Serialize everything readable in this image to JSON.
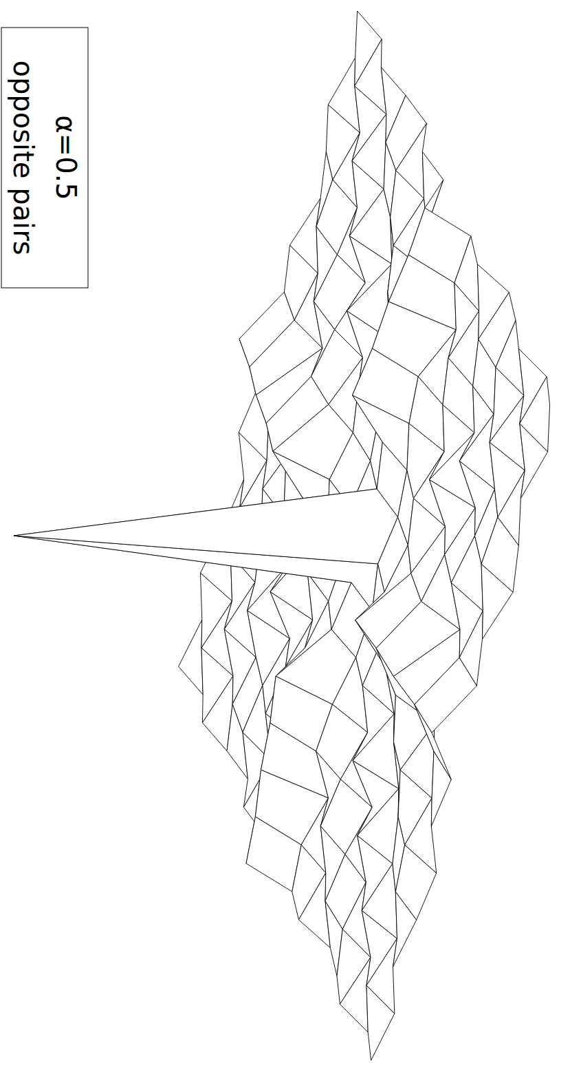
{
  "chart_data": {
    "type": "surface",
    "title": "opposite pairs",
    "subtitle": "α=0.5",
    "z": [
      [
        0.2,
        -0.1,
        0.3,
        0,
        -0.2,
        0.3,
        0.1,
        1.0,
        0.1,
        0.3,
        -0.2,
        0,
        0.3,
        -0.1,
        0.2
      ],
      [
        -0.1,
        0.3,
        -0.2,
        0.2,
        0.3,
        -0.1,
        0.2,
        1.1,
        0.2,
        -0.1,
        0.3,
        0.2,
        -0.2,
        0.3,
        -0.1
      ],
      [
        0.3,
        -0.2,
        0.4,
        -0.1,
        0.1,
        0.4,
        -0.2,
        1.3,
        -0.2,
        0.4,
        0.1,
        -0.1,
        0.4,
        -0.2,
        0.3
      ],
      [
        0,
        0.2,
        -0.1,
        0.5,
        -0.3,
        0.2,
        0.5,
        1.4,
        0.5,
        0.2,
        -0.3,
        0.5,
        -0.1,
        0.2,
        0
      ],
      [
        -0.2,
        0.3,
        0.1,
        -0.3,
        0.6,
        -0.2,
        0.4,
        1.6,
        0.4,
        -0.2,
        0.6,
        -0.3,
        0.1,
        0.3,
        -0.2
      ],
      [
        0.3,
        -0.1,
        0.4,
        0.2,
        -0.2,
        0.3,
        0.1,
        0.4,
        0.1,
        0.3,
        -0.2,
        0.2,
        0.4,
        -0.1,
        0.3
      ],
      [
        0.1,
        0.2,
        -0.2,
        0.5,
        0.4,
        0.1,
        0,
        0.2,
        0,
        0.1,
        0.4,
        0.5,
        -0.2,
        0.2,
        0.1
      ],
      [
        1.0,
        1.1,
        1.3,
        1.4,
        1.6,
        0.4,
        0.2,
        10,
        0.2,
        0.4,
        1.6,
        1.4,
        1.3,
        1.1,
        1.0
      ],
      [
        0.1,
        0.2,
        -0.2,
        0.5,
        0.4,
        0.1,
        0,
        0.2,
        0,
        0.1,
        0.4,
        0.5,
        -0.2,
        0.2,
        0.1
      ],
      [
        0.3,
        -0.1,
        0.4,
        0.2,
        -0.2,
        0.3,
        0.1,
        0.4,
        0.1,
        0.3,
        -0.2,
        0.2,
        0.4,
        -0.1,
        0.3
      ],
      [
        -0.2,
        0.3,
        0.1,
        -0.3,
        0.6,
        -0.2,
        0.4,
        1.6,
        0.4,
        -0.2,
        0.6,
        -0.3,
        0.1,
        0.3,
        -0.2
      ],
      [
        0,
        0.2,
        -0.1,
        0.5,
        -0.3,
        0.2,
        0.5,
        1.4,
        0.5,
        0.2,
        -0.3,
        0.5,
        -0.1,
        0.2,
        0
      ],
      [
        0.3,
        -0.2,
        0.4,
        -0.1,
        0.1,
        0.4,
        -0.2,
        1.3,
        -0.2,
        0.4,
        0.1,
        -0.1,
        0.4,
        -0.2,
        0.3
      ],
      [
        -0.1,
        0.3,
        -0.2,
        0.2,
        0.3,
        -0.1,
        0.2,
        1.1,
        0.2,
        -0.1,
        0.3,
        0.2,
        -0.2,
        0.3,
        -0.1
      ],
      [
        0.2,
        -0.1,
        0.3,
        0,
        -0.2,
        0.3,
        0.1,
        1.0,
        0.1,
        0.3,
        -0.2,
        0,
        0.3,
        -0.1,
        0.2
      ]
    ]
  }
}
